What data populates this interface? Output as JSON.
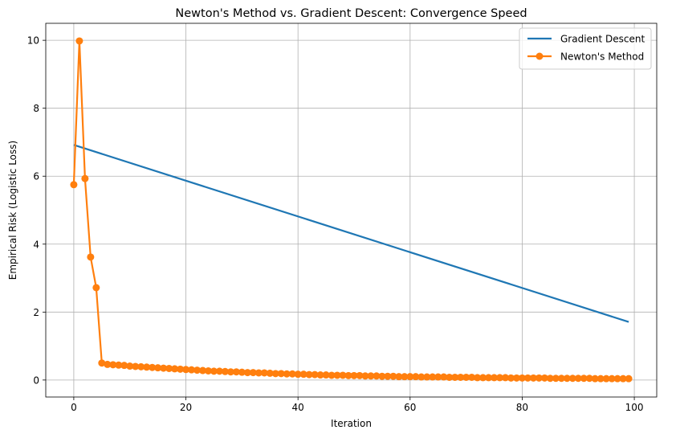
{
  "chart_data": {
    "type": "line",
    "title": "Newton's Method vs. Gradient Descent: Convergence Speed",
    "xlabel": "Iteration",
    "ylabel": "Empirical Risk (Logistic Loss)",
    "xlim": [
      -5,
      104
    ],
    "ylim": [
      -0.5,
      10.5
    ],
    "xticks": [
      0,
      20,
      40,
      60,
      80,
      100
    ],
    "yticks": [
      0,
      2,
      4,
      6,
      8,
      10
    ],
    "grid": true,
    "legend_position": "top-right",
    "series": [
      {
        "name": "Gradient Descent",
        "color": "#1f77b4",
        "marker": "none",
        "x": [
          0,
          99
        ],
        "y": [
          6.92,
          1.71
        ]
      },
      {
        "name": "Newton's Method",
        "color": "#ff7f0e",
        "marker": "circle",
        "x": [
          0,
          1,
          2,
          3,
          4,
          5,
          6,
          7,
          8,
          9,
          10,
          11,
          12,
          13,
          14,
          15,
          16,
          17,
          18,
          19,
          20,
          21,
          22,
          23,
          24,
          25,
          26,
          27,
          28,
          29,
          30,
          31,
          32,
          33,
          34,
          35,
          36,
          37,
          38,
          39,
          40,
          41,
          42,
          43,
          44,
          45,
          46,
          47,
          48,
          49,
          50,
          51,
          52,
          53,
          54,
          55,
          56,
          57,
          58,
          59,
          60,
          61,
          62,
          63,
          64,
          65,
          66,
          67,
          68,
          69,
          70,
          71,
          72,
          73,
          74,
          75,
          76,
          77,
          78,
          79,
          80,
          81,
          82,
          83,
          84,
          85,
          86,
          87,
          88,
          89,
          90,
          91,
          92,
          93,
          94,
          95,
          96,
          97,
          98,
          99
        ],
        "y": [
          5.75,
          9.98,
          5.93,
          3.62,
          2.72,
          0.5,
          0.46,
          0.45,
          0.44,
          0.43,
          0.41,
          0.4,
          0.39,
          0.38,
          0.37,
          0.36,
          0.35,
          0.34,
          0.33,
          0.32,
          0.31,
          0.3,
          0.29,
          0.28,
          0.27,
          0.26,
          0.26,
          0.25,
          0.24,
          0.24,
          0.23,
          0.22,
          0.22,
          0.21,
          0.21,
          0.2,
          0.19,
          0.19,
          0.18,
          0.18,
          0.17,
          0.17,
          0.16,
          0.16,
          0.15,
          0.15,
          0.14,
          0.14,
          0.14,
          0.13,
          0.13,
          0.13,
          0.12,
          0.12,
          0.12,
          0.11,
          0.11,
          0.11,
          0.1,
          0.1,
          0.1,
          0.1,
          0.09,
          0.09,
          0.09,
          0.09,
          0.09,
          0.08,
          0.08,
          0.08,
          0.08,
          0.08,
          0.07,
          0.07,
          0.07,
          0.07,
          0.07,
          0.07,
          0.06,
          0.06,
          0.06,
          0.06,
          0.06,
          0.06,
          0.06,
          0.05,
          0.05,
          0.05,
          0.05,
          0.05,
          0.05,
          0.05,
          0.05,
          0.04,
          0.04,
          0.04,
          0.04,
          0.04,
          0.04,
          0.04
        ]
      }
    ]
  }
}
